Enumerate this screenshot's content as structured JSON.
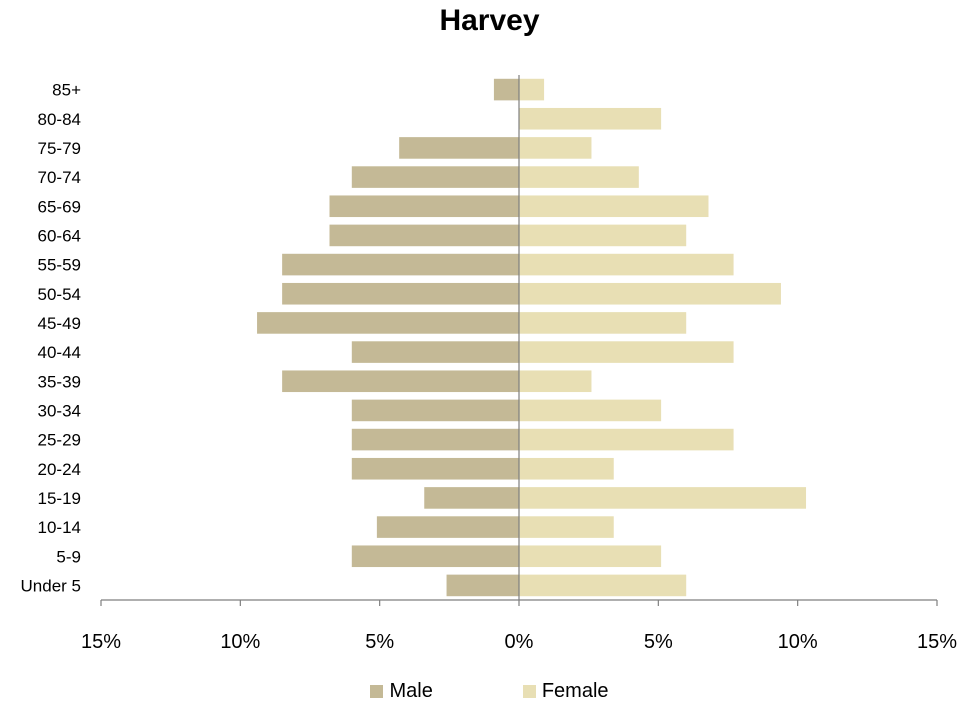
{
  "chart_data": {
    "type": "bar",
    "orientation": "horizontal",
    "title": "Harvey",
    "categories": [
      "Under 5",
      "5-9",
      "10-14",
      "15-19",
      "20-24",
      "25-29",
      "30-34",
      "35-39",
      "40-44",
      "45-49",
      "50-54",
      "55-59",
      "60-64",
      "65-69",
      "70-74",
      "75-79",
      "80-84",
      "85+"
    ],
    "series": [
      {
        "name": "Male",
        "color": "#c4b996",
        "values": [
          -2.6,
          -6.0,
          -5.1,
          -3.4,
          -6.0,
          -6.0,
          -6.0,
          -8.5,
          -6.0,
          -9.4,
          -8.5,
          -8.5,
          -6.8,
          -6.8,
          -6.0,
          -4.3,
          0,
          -0.9
        ]
      },
      {
        "name": "Female",
        "color": "#e8dfb4",
        "values": [
          6.0,
          5.1,
          3.4,
          10.3,
          3.4,
          7.7,
          5.1,
          2.6,
          7.7,
          6.0,
          9.4,
          7.7,
          6.0,
          6.8,
          4.3,
          2.6,
          5.1,
          0.9
        ]
      }
    ],
    "xlim": [
      -15,
      15
    ],
    "xticks": [
      -15,
      -10,
      -5,
      0,
      5,
      10,
      15
    ],
    "xtick_labels": [
      "15%",
      "10%",
      "5%",
      "0%",
      "5%",
      "10%",
      "15%"
    ],
    "legend_position": "bottom",
    "grid": false
  }
}
